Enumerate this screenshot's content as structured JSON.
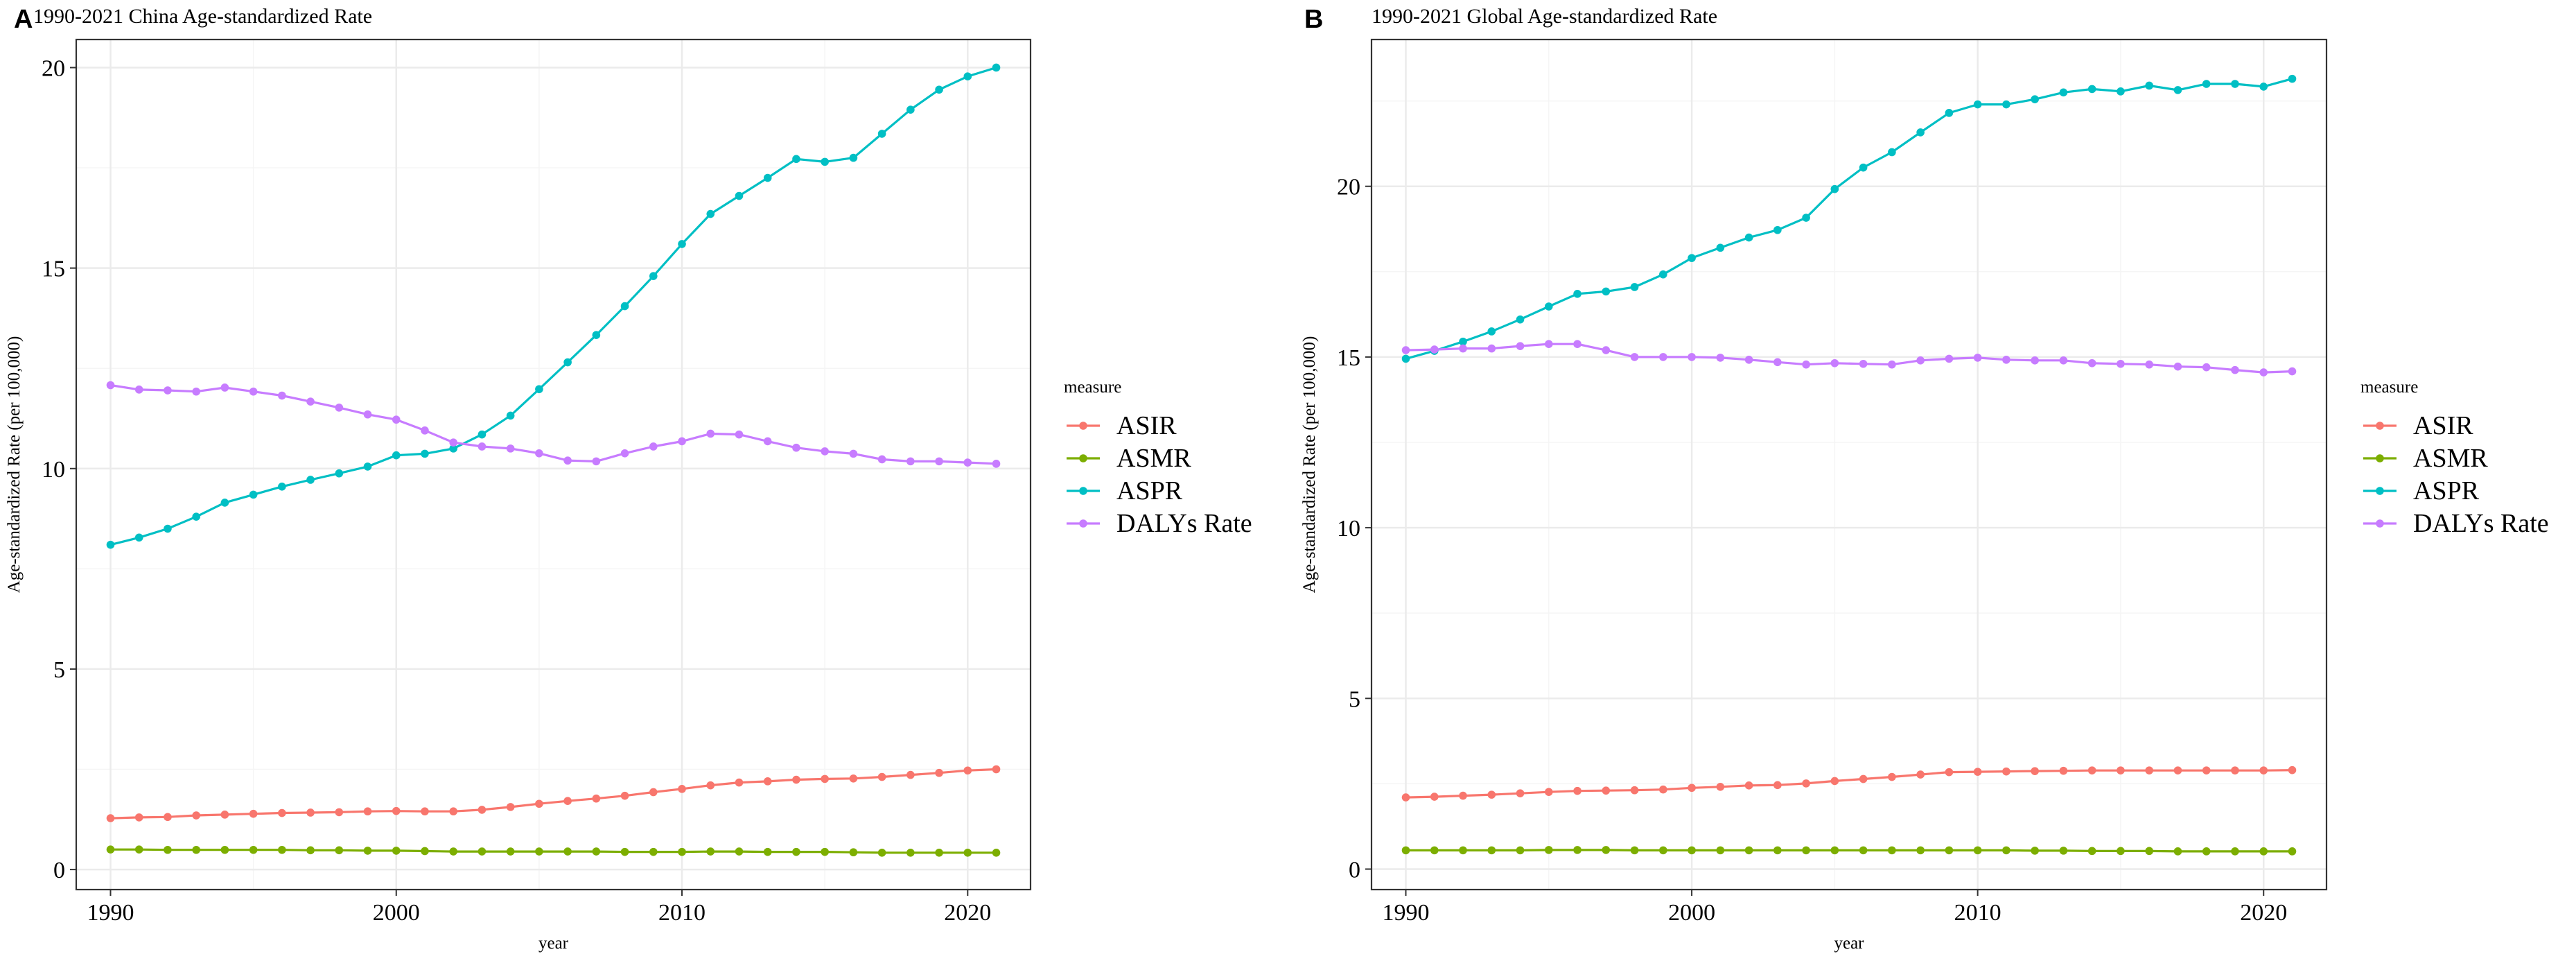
{
  "colors": {
    "ASIR": "#F8766D",
    "ASMR": "#7CAE00",
    "ASPR": "#00BFC4",
    "DALYs Rate": "#C77CFF",
    "grid_major": "#EBEBEB",
    "grid_minor": "#F5F5F5",
    "panel_border": "#333333",
    "axis_text": "#000000"
  },
  "legend": {
    "title": "measure",
    "items": [
      "ASIR",
      "ASMR",
      "ASPR",
      "DALYs Rate"
    ]
  },
  "chart_data": [
    {
      "panel_label": "A",
      "type": "line",
      "title": "1990-2021 China Age-standardized Rate",
      "xlabel": "year",
      "ylabel": "Age-standardized Rate (per 100,000)",
      "xlim": [
        1988.8,
        2022.2
      ],
      "ylim": [
        -0.5,
        20.7
      ],
      "xticks": [
        1990,
        2000,
        2010,
        2020
      ],
      "yticks": [
        0,
        5,
        10,
        15,
        20
      ],
      "x": [
        1990,
        1991,
        1992,
        1993,
        1994,
        1995,
        1996,
        1997,
        1998,
        1999,
        2000,
        2001,
        2002,
        2003,
        2004,
        2005,
        2006,
        2007,
        2008,
        2009,
        2010,
        2011,
        2012,
        2013,
        2014,
        2015,
        2016,
        2017,
        2018,
        2019,
        2020,
        2021
      ],
      "series": [
        {
          "name": "ASIR",
          "values": [
            1.28,
            1.3,
            1.31,
            1.35,
            1.37,
            1.39,
            1.41,
            1.42,
            1.43,
            1.45,
            1.46,
            1.45,
            1.45,
            1.49,
            1.56,
            1.64,
            1.71,
            1.77,
            1.84,
            1.93,
            2.01,
            2.1,
            2.17,
            2.2,
            2.24,
            2.26,
            2.27,
            2.31,
            2.36,
            2.41,
            2.47,
            2.5
          ]
        },
        {
          "name": "ASMR",
          "values": [
            0.5,
            0.5,
            0.49,
            0.49,
            0.49,
            0.49,
            0.49,
            0.48,
            0.48,
            0.47,
            0.47,
            0.46,
            0.45,
            0.45,
            0.45,
            0.45,
            0.45,
            0.45,
            0.44,
            0.44,
            0.44,
            0.45,
            0.45,
            0.44,
            0.44,
            0.44,
            0.43,
            0.42,
            0.42,
            0.42,
            0.42,
            0.42
          ]
        },
        {
          "name": "ASPR",
          "values": [
            8.1,
            8.28,
            8.5,
            8.8,
            9.15,
            9.35,
            9.55,
            9.72,
            9.88,
            10.05,
            10.33,
            10.37,
            10.5,
            10.85,
            11.32,
            11.98,
            12.65,
            13.33,
            14.05,
            14.8,
            15.6,
            16.35,
            16.8,
            17.25,
            17.72,
            17.65,
            17.75,
            18.35,
            18.95,
            19.45,
            19.78,
            20.0
          ]
        },
        {
          "name": "DALYs Rate",
          "values": [
            12.08,
            11.97,
            11.95,
            11.92,
            12.02,
            11.92,
            11.82,
            11.67,
            11.52,
            11.35,
            11.22,
            10.95,
            10.65,
            10.55,
            10.5,
            10.38,
            10.2,
            10.18,
            10.38,
            10.55,
            10.68,
            10.87,
            10.85,
            10.68,
            10.52,
            10.43,
            10.37,
            10.23,
            10.18,
            10.18,
            10.15,
            10.12
          ]
        }
      ]
    },
    {
      "panel_label": "B",
      "type": "line",
      "title": "1990-2021 Global Age-standardized Rate",
      "xlabel": "year",
      "ylabel": "Age-standardized Rate (per 100,000)",
      "xlim": [
        1988.8,
        2022.2
      ],
      "ylim": [
        -0.6,
        24.3
      ],
      "xticks": [
        1990,
        2000,
        2010,
        2020
      ],
      "yticks": [
        0,
        5,
        10,
        15,
        20
      ],
      "x": [
        1990,
        1991,
        1992,
        1993,
        1994,
        1995,
        1996,
        1997,
        1998,
        1999,
        2000,
        2001,
        2002,
        2003,
        2004,
        2005,
        2006,
        2007,
        2008,
        2009,
        2010,
        2011,
        2012,
        2013,
        2014,
        2015,
        2016,
        2017,
        2018,
        2019,
        2020,
        2021
      ],
      "series": [
        {
          "name": "ASIR",
          "values": [
            2.1,
            2.12,
            2.15,
            2.18,
            2.22,
            2.26,
            2.29,
            2.3,
            2.31,
            2.33,
            2.38,
            2.41,
            2.45,
            2.46,
            2.51,
            2.58,
            2.64,
            2.7,
            2.77,
            2.84,
            2.85,
            2.86,
            2.87,
            2.88,
            2.89,
            2.89,
            2.89,
            2.89,
            2.89,
            2.89,
            2.89,
            2.9
          ]
        },
        {
          "name": "ASMR",
          "values": [
            0.55,
            0.55,
            0.55,
            0.55,
            0.55,
            0.56,
            0.56,
            0.56,
            0.55,
            0.55,
            0.55,
            0.55,
            0.55,
            0.55,
            0.55,
            0.55,
            0.55,
            0.55,
            0.55,
            0.55,
            0.55,
            0.55,
            0.54,
            0.54,
            0.53,
            0.53,
            0.53,
            0.52,
            0.52,
            0.52,
            0.52,
            0.52
          ]
        },
        {
          "name": "ASPR",
          "values": [
            14.95,
            15.18,
            15.45,
            15.75,
            16.1,
            16.48,
            16.85,
            16.92,
            17.05,
            17.42,
            17.9,
            18.2,
            18.5,
            18.72,
            19.08,
            19.92,
            20.55,
            21.0,
            21.58,
            22.15,
            22.4,
            22.4,
            22.55,
            22.75,
            22.85,
            22.78,
            22.95,
            22.82,
            23.0,
            23.0,
            22.92,
            23.15
          ]
        },
        {
          "name": "DALYs Rate",
          "values": [
            15.2,
            15.22,
            15.25,
            15.25,
            15.32,
            15.38,
            15.38,
            15.2,
            15.0,
            15.0,
            15.0,
            14.98,
            14.92,
            14.85,
            14.78,
            14.82,
            14.8,
            14.78,
            14.9,
            14.95,
            14.98,
            14.92,
            14.9,
            14.9,
            14.82,
            14.8,
            14.78,
            14.72,
            14.7,
            14.62,
            14.55,
            14.58
          ]
        }
      ]
    }
  ]
}
